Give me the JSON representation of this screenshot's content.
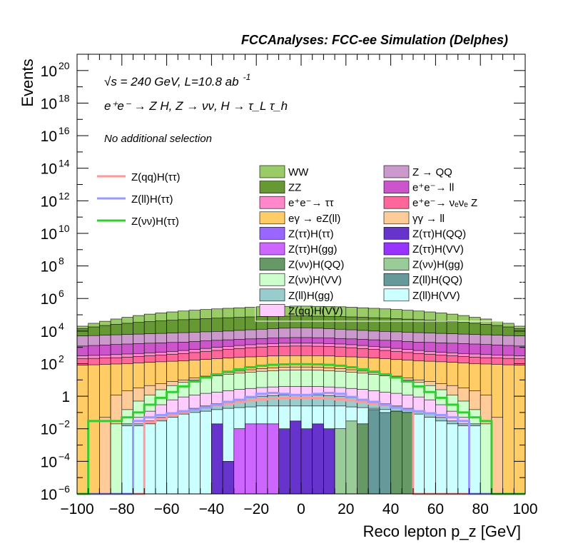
{
  "header": {
    "title": "FCCAnalyses: FCC-ee Simulation (Delphes)",
    "energy_label": "√s = 240 GeV, L=10.8 ab",
    "energy_exp": "-1",
    "process_label": "e⁺e⁻ → Z H, Z → νν, H → τ_L τ_h",
    "selection_label": "No additional selection"
  },
  "chart_data": {
    "type": "stacked-histogram",
    "title": "FCCAnalyses: FCC-ee Simulation (Delphes)",
    "xlabel": "Reco lepton p_z [GeV]",
    "ylabel": "Events",
    "xlim": [
      -100,
      100
    ],
    "ylim": [
      1e-06,
      1e+21
    ],
    "yscale": "log",
    "x_ticks": [
      "−100",
      "−80",
      "−60",
      "−40",
      "−20",
      "0",
      "20",
      "40",
      "60",
      "80",
      "100"
    ],
    "y_ticks": [
      {
        "mantissa": "10",
        "exp": "−6",
        "value": 1e-06
      },
      {
        "mantissa": "10",
        "exp": "−4",
        "value": 0.0001
      },
      {
        "mantissa": "10",
        "exp": "−2",
        "value": 0.01
      },
      {
        "mantissa": "1",
        "exp": "",
        "value": 1
      },
      {
        "mantissa": "10",
        "exp": "2",
        "value": 100.0
      },
      {
        "mantissa": "10",
        "exp": "4",
        "value": 10000.0
      },
      {
        "mantissa": "10",
        "exp": "6",
        "value": 1000000.0
      },
      {
        "mantissa": "10",
        "exp": "8",
        "value": 100000000.0
      },
      {
        "mantissa": "10",
        "exp": "10",
        "value": 10000000000.0
      },
      {
        "mantissa": "10",
        "exp": "12",
        "value": 1000000000000.0
      },
      {
        "mantissa": "10",
        "exp": "14",
        "value": 100000000000000.0
      },
      {
        "mantissa": "10",
        "exp": "16",
        "value": 1e+16
      },
      {
        "mantissa": "10",
        "exp": "18",
        "value": 1e+18
      },
      {
        "mantissa": "10",
        "exp": "20",
        "value": 1e+20
      }
    ],
    "bin_edges": [
      -100,
      -95,
      -90,
      -85,
      -80,
      -75,
      -70,
      -65,
      -60,
      -55,
      -50,
      -45,
      -40,
      -35,
      -30,
      -25,
      -20,
      -15,
      -10,
      -5,
      0,
      5,
      10,
      15,
      20,
      25,
      30,
      35,
      40,
      45,
      50,
      55,
      60,
      65,
      70,
      75,
      80,
      85,
      90,
      95,
      100
    ],
    "stack_tops": [
      {
        "name": "WW",
        "color": "#99cc66",
        "values": [
          20000.0,
          30000.0,
          40000.0,
          55000.0,
          70000.0,
          90000.0,
          110000.0,
          130000.0,
          150000.0,
          170000.0,
          190000.0,
          210000.0,
          230000.0,
          250000.0,
          270000.0,
          290000.0,
          310000.0,
          320000.0,
          330000.0,
          340000.0,
          340000.0,
          330000.0,
          320000.0,
          310000.0,
          290000.0,
          270000.0,
          250000.0,
          230000.0,
          210000.0,
          190000.0,
          170000.0,
          150000.0,
          130000.0,
          110000.0,
          90000.0,
          70000.0,
          55000.0,
          40000.0,
          30000.0,
          20000.0
        ]
      },
      {
        "name": "ZZ",
        "color": "#669933",
        "values": [
          14000.0,
          18000.0,
          22000.0,
          26000.0,
          30000.0,
          34000.0,
          38000.0,
          42000.0,
          46000.0,
          50000.0,
          54000.0,
          58000.0,
          62000.0,
          66000.0,
          70000.0,
          74000.0,
          78000.0,
          80000.0,
          82000.0,
          84000.0,
          84000.0,
          82000.0,
          80000.0,
          78000.0,
          74000.0,
          70000.0,
          66000.0,
          62000.0,
          58000.0,
          54000.0,
          50000.0,
          46000.0,
          42000.0,
          38000.0,
          34000.0,
          30000.0,
          26000.0,
          22000.0,
          18000.0,
          14000.0
        ]
      },
      {
        "name": "Z → QQ",
        "color": "#cc99cc",
        "values": [
          5000.0,
          5300.0,
          5600.0,
          5900.0,
          6200.0,
          6500.0,
          6800.0,
          7200.0,
          7600.0,
          8000.0,
          8500.0,
          9000.0,
          9500.0,
          10000.0,
          11000.0,
          12000.0,
          13000.0,
          14000.0,
          15000.0,
          16000.0,
          16000.0,
          15000.0,
          14000.0,
          13000.0,
          12000.0,
          11000.0,
          10000.0,
          9500.0,
          9000.0,
          8500.0,
          8000.0,
          7600.0,
          7200.0,
          6800.0,
          6500.0,
          6200.0,
          5900.0,
          5600.0,
          5300.0,
          5000.0
        ]
      },
      {
        "name": "e⁺e⁻ → ll",
        "color": "#cc55cc",
        "values": [
          1200.0,
          1300.0,
          1400.0,
          1500.0,
          1600.0,
          1700.0,
          1800.0,
          1900.0,
          2000.0,
          2100.0,
          2300.0,
          2500.0,
          2700.0,
          2900.0,
          3100.0,
          3300.0,
          3500.0,
          3700.0,
          3900.0,
          4000.0,
          4000.0,
          3900.0,
          3700.0,
          3500.0,
          3300.0,
          3100.0,
          2900.0,
          2700.0,
          2500.0,
          2300.0,
          2100.0,
          2000.0,
          1900.0,
          1800.0,
          1700.0,
          1600.0,
          1500.0,
          1400.0,
          1300.0,
          1200.0
        ]
      },
      {
        "name": "e⁺e⁻ → ττ",
        "color": "#ff88cc",
        "values": [
          300,
          320,
          340,
          360,
          390,
          420,
          460,
          500,
          560,
          640,
          740,
          860,
          1000,
          1150,
          1300,
          1450,
          1600,
          1700,
          1780,
          1800,
          1800,
          1780,
          1700,
          1600,
          1450,
          1300,
          1150,
          1000,
          860,
          740,
          640,
          560,
          500,
          460,
          420,
          390,
          360,
          340,
          320,
          300
        ]
      },
      {
        "name": "e⁺e⁻ → νeνe Z",
        "color": "#ff6699",
        "values": [
          200,
          210,
          220,
          230,
          250,
          270,
          300,
          330,
          370,
          420,
          480,
          550,
          640,
          740,
          850,
          950,
          1050,
          1120,
          1170,
          1200,
          1200,
          1170,
          1120,
          1050,
          950,
          850,
          740,
          640,
          550,
          480,
          420,
          370,
          330,
          300,
          270,
          250,
          230,
          220,
          210,
          200
        ]
      },
      {
        "name": "eγ → eZ(ll)",
        "color": "#ffcc66",
        "values": [
          80,
          85,
          90,
          95,
          100,
          110,
          120,
          130,
          140,
          150,
          165,
          180,
          200,
          220,
          240,
          260,
          280,
          295,
          305,
          310,
          310,
          305,
          295,
          280,
          260,
          240,
          220,
          200,
          180,
          165,
          150,
          140,
          130,
          120,
          110,
          100,
          95,
          90,
          85,
          80
        ]
      },
      {
        "name": "γγ → ll",
        "color": "#ffcc99",
        "values": [
          1e-06,
          1e-06,
          0.05,
          1.2,
          2.2,
          3.2,
          4.5,
          6,
          8,
          10,
          13,
          17,
          22,
          28,
          35,
          42,
          50,
          56,
          60,
          62,
          62,
          60,
          56,
          50,
          42,
          35,
          28,
          22,
          17,
          13,
          10,
          8,
          6,
          4.5,
          3.2,
          2.2,
          1.2,
          0.05,
          1e-06,
          1e-06
        ]
      },
      {
        "name": "Z(νν)H(VV)",
        "color": "#ccffcc",
        "values": [
          1e-06,
          1e-06,
          1e-06,
          0.02,
          0.15,
          0.5,
          1.2,
          2.5,
          4.5,
          7,
          10,
          14,
          18,
          22,
          26,
          30,
          34,
          37,
          39,
          40,
          40,
          39,
          37,
          34,
          30,
          26,
          22,
          18,
          14,
          10,
          7,
          4.5,
          2.5,
          1.2,
          0.5,
          0.15,
          0.02,
          1e-06,
          1e-06,
          1e-06
        ]
      },
      {
        "name": "Z(qq)H(VV)",
        "color": "#ffccff",
        "values": [
          1e-06,
          1e-06,
          1e-06,
          1e-06,
          0.02,
          0.05,
          0.12,
          0.3,
          0.6,
          0.9,
          1.2,
          1.5,
          1.8,
          2.2,
          2.6,
          3,
          3.4,
          3.7,
          3.9,
          4,
          4,
          3.9,
          3.7,
          3.4,
          3,
          2.6,
          2.2,
          1.8,
          1.5,
          1.2,
          0.9,
          0.6,
          0.3,
          0.12,
          0.05,
          0.02,
          1e-06,
          1e-06,
          1e-06,
          1e-06
        ]
      },
      {
        "name": "Z(ll)H(gg)",
        "color": "#99cccc",
        "values": [
          1e-06,
          1e-06,
          1e-06,
          1e-06,
          0.02,
          0.02,
          0.03,
          0.05,
          0.08,
          0.12,
          0.18,
          0.25,
          0.35,
          0.45,
          0.6,
          0.8,
          1,
          1.1,
          1.2,
          1.2,
          1.2,
          1.2,
          1.1,
          1,
          0.8,
          0.6,
          0.45,
          0.35,
          0.25,
          0.18,
          0.12,
          0.08,
          0.05,
          0.03,
          0.02,
          0.02,
          1e-06,
          1e-06,
          1e-06,
          1e-06
        ]
      },
      {
        "name": "Z(ll)H(VV)",
        "color": "#ccffff",
        "values": [
          1e-06,
          1e-06,
          1e-06,
          1e-06,
          0.015,
          0.015,
          0.02,
          0.03,
          0.05,
          0.08,
          0.1,
          0.12,
          0.15,
          0.18,
          0.2,
          0.22,
          0.25,
          0.25,
          0.25,
          0.25,
          0.25,
          0.25,
          0.25,
          0.25,
          0.22,
          0.2,
          0.18,
          0.15,
          0.12,
          0.1,
          0.08,
          0.05,
          0.03,
          0.02,
          0.015,
          0.015,
          1e-06,
          1e-06,
          1e-06,
          1e-06
        ]
      }
    ],
    "stack_bottoms": [
      {
        "name": "Z(ττ)H(QQ)",
        "color": "#6633cc",
        "values": [
          1e-06,
          1e-06,
          1e-06,
          1e-06,
          1e-06,
          1e-06,
          1e-06,
          1e-06,
          1e-06,
          1e-06,
          1e-06,
          1e-06,
          0.02,
          0.0001,
          0.01,
          0.01,
          0.02,
          0.005,
          0.01,
          0.03,
          0.01,
          0.02,
          0.01,
          0.01,
          0.01,
          0.02,
          0.01,
          1e-06,
          1e-06,
          1e-06,
          1e-06,
          1e-06,
          1e-06,
          1e-06,
          1e-06,
          1e-06,
          1e-06,
          1e-06,
          1e-06,
          1e-06
        ]
      },
      {
        "name": "Z(ττ)H(gg)",
        "color": "#cc66ff",
        "values": [
          1e-06,
          1e-06,
          1e-06,
          1e-06,
          1e-06,
          1e-06,
          1e-06,
          1e-06,
          1e-06,
          1e-06,
          1e-06,
          1e-06,
          1e-06,
          1e-06,
          0.01,
          0.02,
          0.02,
          0.02,
          1e-06,
          1e-06,
          1e-06,
          1e-06,
          1e-06,
          1e-06,
          1e-06,
          1e-06,
          1e-06,
          1e-06,
          1e-06,
          1e-06,
          1e-06,
          1e-06,
          1e-06,
          1e-06,
          1e-06,
          1e-06,
          1e-06,
          1e-06,
          1e-06,
          1e-06
        ]
      },
      {
        "name": "Z(νν)H(QQ)",
        "color": "#669966",
        "values": [
          1e-06,
          1e-06,
          1e-06,
          1e-06,
          1e-06,
          1e-06,
          1e-06,
          1e-06,
          1e-06,
          1e-06,
          1e-06,
          1e-06,
          1e-06,
          1e-06,
          1e-06,
          1e-06,
          1e-06,
          1e-06,
          1e-06,
          1e-06,
          1e-06,
          1e-06,
          1e-06,
          1e-06,
          1e-06,
          0.02,
          0.05,
          0.08,
          0.12,
          0.1,
          1e-06,
          1e-06,
          1e-06,
          1e-06,
          1e-06,
          1e-06,
          1e-06,
          1e-06,
          1e-06,
          1e-06
        ]
      },
      {
        "name": "Z(νν)H(gg)",
        "color": "#99cc99",
        "values": [
          1e-06,
          1e-06,
          1e-06,
          1e-06,
          1e-06,
          1e-06,
          1e-06,
          1e-06,
          1e-06,
          1e-06,
          1e-06,
          1e-06,
          1e-06,
          1e-06,
          1e-06,
          1e-06,
          1e-06,
          1e-06,
          1e-06,
          1e-06,
          1e-06,
          1e-06,
          1e-06,
          0.01,
          0.03,
          1e-06,
          1e-06,
          1e-06,
          1e-06,
          1e-06,
          1e-06,
          1e-06,
          1e-06,
          1e-06,
          1e-06,
          1e-06,
          1e-06,
          1e-06,
          1e-06,
          1e-06
        ]
      },
      {
        "name": "Z(ll)H(QQ)",
        "color": "#669999",
        "values": [
          1e-06,
          1e-06,
          1e-06,
          1e-06,
          1e-06,
          1e-06,
          1e-06,
          1e-06,
          1e-06,
          1e-06,
          1e-06,
          1e-06,
          1e-06,
          1e-06,
          1e-06,
          1e-06,
          1e-06,
          1e-06,
          1e-06,
          1e-06,
          1e-06,
          1e-06,
          1e-06,
          1e-06,
          1e-06,
          1e-06,
          0.15,
          0.1,
          1e-06,
          1e-06,
          1e-06,
          1e-06,
          1e-06,
          1e-06,
          1e-06,
          1e-06,
          1e-06,
          1e-06,
          1e-06,
          1e-06
        ]
      }
    ],
    "lines": [
      {
        "name": "Z(qq)H(ττ)",
        "color": "#ff9999",
        "values": [
          1e-06,
          1e-06,
          1e-06,
          1e-06,
          1e-06,
          1e-06,
          0.025,
          0.04,
          0.07,
          0.1,
          0.15,
          0.2,
          0.28,
          0.35,
          0.45,
          0.55,
          0.65,
          0.72,
          0.78,
          0.8,
          0.8,
          0.78,
          0.72,
          0.65,
          0.55,
          0.45,
          0.35,
          0.28,
          0.2,
          0.15,
          1e-06,
          1e-06,
          1e-06,
          1e-06,
          1e-06,
          1e-06,
          1e-06,
          1e-06,
          1e-06,
          1e-06
        ]
      },
      {
        "name": "Z(ll)H(ττ)",
        "color": "#9999ff",
        "values": [
          1e-06,
          1e-06,
          1e-06,
          1e-06,
          1e-06,
          0.03,
          0.05,
          0.07,
          0.09,
          0.12,
          0.15,
          0.2,
          0.3,
          0.45,
          0.6,
          0.9,
          1.4,
          1.6,
          1.4,
          1.2,
          1.2,
          1.4,
          1.6,
          1.4,
          0.9,
          0.6,
          0.45,
          0.3,
          0.2,
          0.15,
          0.12,
          0.09,
          0.07,
          0.05,
          0.03,
          1e-06,
          1e-06,
          1e-06,
          1e-06,
          1e-06
        ]
      },
      {
        "name": "Z(νν)H(ττ)",
        "color": "#33cc33",
        "values": [
          1e-06,
          0.03,
          0.03,
          0.03,
          0.05,
          0.1,
          0.3,
          0.8,
          1.8,
          4,
          8,
          14,
          22,
          32,
          45,
          60,
          75,
          85,
          90,
          92,
          92,
          90,
          85,
          75,
          60,
          45,
          32,
          22,
          14,
          8,
          4,
          1.8,
          0.8,
          0.3,
          0.1,
          0.05,
          0.03,
          1e-06,
          1e-06,
          1e-06
        ]
      }
    ],
    "legend": {
      "lines": [
        "Z(qq)H(ττ)",
        "Z(ll)H(ττ)",
        "Z(νν)H(ττ)"
      ],
      "fills_col1": [
        "WW",
        "ZZ",
        "e⁺e⁻→ ττ",
        "eγ → eZ(ll)",
        "Z(ττ)H(ττ)",
        "Z(ττ)H(gg)",
        "Z(νν)H(QQ)",
        "Z(νν)H(VV)",
        "Z(ll)H(gg)",
        "Z(qq)H(VV)"
      ],
      "fills_col1_colors": [
        "#99cc66",
        "#669933",
        "#ff88cc",
        "#ffcc66",
        "#9966ff",
        "#cc66ff",
        "#669966",
        "#ccffcc",
        "#99cccc",
        "#ffccff"
      ],
      "fills_col2": [
        "Z → QQ",
        "e⁺e⁻→ ll",
        "e⁺e⁻→ νₑνₑ Z",
        "γγ → ll",
        "Z(ττ)H(QQ)",
        "Z(ττ)H(VV)",
        "Z(νν)H(gg)",
        "Z(ll)H(QQ)",
        "Z(ll)H(VV)"
      ],
      "fills_col2_colors": [
        "#cc99cc",
        "#cc55cc",
        "#ff6699",
        "#ffcc99",
        "#6633cc",
        "#9933ff",
        "#99cc99",
        "#669999",
        "#ccffff"
      ],
      "placement": "upper-right inside plot"
    }
  }
}
